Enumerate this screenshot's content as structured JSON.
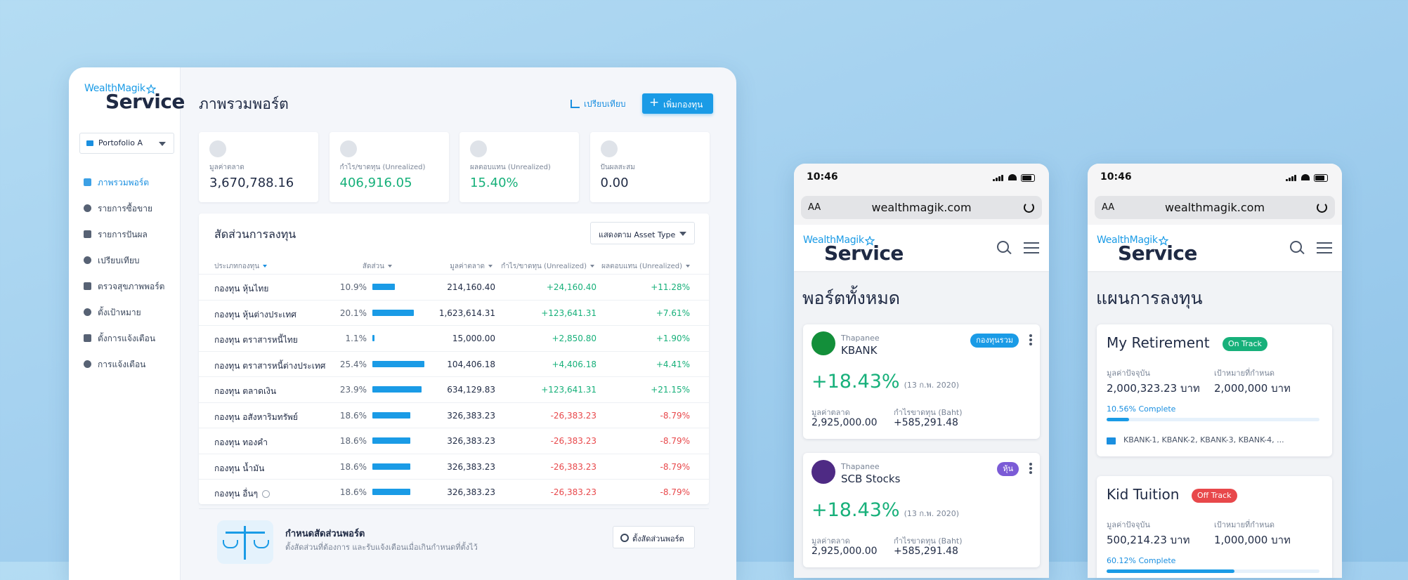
{
  "desktop": {
    "logo": {
      "brand": "WealthMagik",
      "product": "Service"
    },
    "portfolio_select": "Portofolio A",
    "nav": [
      "ภาพรวมพอร์ต",
      "รายการซื้อขาย",
      "รายการปันผล",
      "เปรียบเทียบ",
      "ตรวจสุขภาพพอร์ต",
      "ตั้งเป้าหมาย",
      "ตั้งการแจ้งเตือน",
      "การแจ้งเตือน"
    ],
    "page_title": "ภาพรวมพอร์ต",
    "compare_button": "เปรียบเทียบ",
    "add_fund_button": "เพิ่มกองทุน",
    "stats": [
      {
        "label": "มูลค่าตลาด",
        "value": "3,670,788.16",
        "value_color": "#1f2a44"
      },
      {
        "label": "กำไร/ขาดทุน (Unrealized)",
        "value": "406,916.05",
        "value_color": "#17b07a"
      },
      {
        "label": "ผลตอบแทน (Unrealized)",
        "value": "15.40%",
        "value_color": "#17b07a"
      },
      {
        "label": "ปันผลสะสม",
        "value": "0.00",
        "value_color": "#1f2a44"
      }
    ],
    "allocation": {
      "title": "สัดส่วนการลงทุน",
      "view_select": "แสดงตาม Asset Type",
      "columns": [
        "ประเภทกองทุน",
        "สัดส่วน",
        "มูลค่าตลาด",
        "กำไร/ขาดทุน (Unrealized)",
        "ผลตอบแทน (Unrealized)"
      ],
      "rows": [
        [
          "กองทุน หุ้นไทย",
          "10.9%",
          "214,160.40",
          "+24,160.40",
          "+11.28%"
        ],
        [
          "กองทุน หุ้นต่างประเทศ",
          "20.1%",
          "1,623,614.31",
          "+123,641.31",
          "+7.61%"
        ],
        [
          "กองทุน ตราสารหนี้ไทย",
          "1.1%",
          "15,000.00",
          "+2,850.80",
          "+1.90%"
        ],
        [
          "กองทุน ตราสารหนี้ต่างประเทศ",
          "25.4%",
          "104,406.18",
          "+4,406.18",
          "+4.41%"
        ],
        [
          "กองทุน ตลาดเงิน",
          "23.9%",
          "634,129.83",
          "+123,641.31",
          "+21.15%"
        ],
        [
          "กองทุน อสังหาริมทรัพย์",
          "18.6%",
          "326,383.23",
          "-26,383.23",
          "-8.79%"
        ],
        [
          "กองทุน ทองคำ",
          "18.6%",
          "326,383.23",
          "-26,383.23",
          "-8.79%"
        ],
        [
          "กองทุน น้ำมัน",
          "18.6%",
          "326,383.23",
          "-26,383.23",
          "-8.79%"
        ],
        [
          "กองทุน อื่นๆ",
          "18.6%",
          "326,383.23",
          "-26,383.23",
          "-8.79%"
        ]
      ]
    },
    "rebalance": {
      "title": "กำหนดสัดส่วนพอร์ต",
      "description": "ตั้งสัดส่วนที่ต้องการ และรับแจ้งเตือนเมื่อเกินกำหนดที่ตั้งไว้",
      "button": "ตั้งสัดส่วนพอร์ต"
    }
  },
  "mobile_portfolios": {
    "status_time": "10:46",
    "text_size": "AA",
    "url": "wealthmagik.com",
    "logo": {
      "brand": "WealthMagik",
      "product": "Service"
    },
    "title": "พอร์ตทั้งหมด",
    "cards": [
      {
        "broker": "Thapanee",
        "name": "KBANK",
        "logo_color": "#138f3a",
        "tag": "กองทุนรวม",
        "tag_color": "#1a9be6",
        "return": "+18.43%",
        "date": "(13 ก.พ. 2020)",
        "market_value_label": "มูลค่าตลาด",
        "market_value": "2,925,000.00",
        "profit_label": "กำไรขาดทุน (Baht)",
        "profit": "+585,291.48"
      },
      {
        "broker": "Thapanee",
        "name": "SCB Stocks",
        "logo_color": "#4e2a84",
        "tag": "หุ้น",
        "tag_color": "#7b5bd6",
        "return": "+18.43%",
        "date": "(13 ก.พ. 2020)",
        "market_value_label": "มูลค่าตลาด",
        "market_value": "2,925,000.00",
        "profit_label": "กำไรขาดทุน (Baht)",
        "profit": "+585,291.48"
      }
    ]
  },
  "mobile_plans": {
    "status_time": "10:46",
    "text_size": "AA",
    "url": "wealthmagik.com",
    "logo": {
      "brand": "WealthMagik",
      "product": "Service"
    },
    "title": "แผนการลงทุน",
    "plans": [
      {
        "name": "My Retirement",
        "status": "On Track",
        "status_color": "#17b07a",
        "current_label": "มูลค่าปัจจุบัน",
        "current": "2,000,323.23 บาท",
        "target_label": "เป้าหมายที่กำหนด",
        "target": "2,000,000 บาท",
        "progress": "10.56% Complete",
        "funds": "KBANK-1, KBANK-2, KBANK-3, KBANK-4, ..."
      },
      {
        "name": "Kid Tuition",
        "status": "Off Track",
        "status_color": "#e8484b",
        "current_label": "มูลค่าปัจจุบัน",
        "current": "500,214.23 บาท",
        "target_label": "เป้าหมายที่กำหนด",
        "target": "1,000,000 บาท",
        "progress": "60.12% Complete",
        "funds": null
      }
    ]
  }
}
